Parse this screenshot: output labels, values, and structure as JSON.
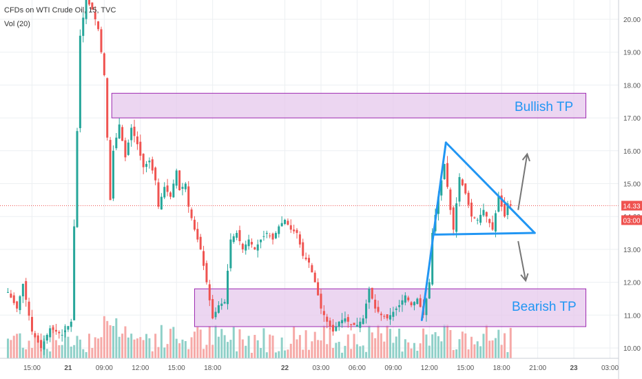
{
  "header": {
    "symbol_line": "CFDs on WTI Crude Oil, 15, TVC",
    "volume_line": "Vol (20)"
  },
  "price_tags": {
    "last_price": "14.33",
    "countdown": "03:00"
  },
  "annotations": {
    "bullish": "Bullish TP",
    "bearish": "Bearish TP"
  },
  "colors": {
    "up": "#26a69a",
    "down": "#ef5350",
    "vol_up": "#8fd0c8",
    "vol_down": "#f6a9a7",
    "zone_fill": "#e6c8ec",
    "zone_border": "#9c27b0",
    "pattern": "#2196f3",
    "arrow": "#757575",
    "last_price": "#ef5350"
  },
  "chart_data": {
    "type": "candlestick",
    "y_ticks": [
      "10.00",
      "11.00",
      "12.00",
      "13.00",
      "14.00",
      "15.00",
      "16.00",
      "17.00",
      "18.00",
      "19.00",
      "20.00"
    ],
    "ylim": [
      9.75,
      20.65
    ],
    "x_ticks": [
      {
        "label": "15:00",
        "bar": 8
      },
      {
        "label": "21",
        "bar": 20,
        "bold": true
      },
      {
        "label": "09:00",
        "bar": 32
      },
      {
        "label": "12:00",
        "bar": 44
      },
      {
        "label": "15:00",
        "bar": 56
      },
      {
        "label": "18:00",
        "bar": 68
      },
      {
        "label": "22",
        "bar": 92,
        "bold": true
      },
      {
        "label": "03:00",
        "bar": 104
      },
      {
        "label": "06:00",
        "bar": 116
      },
      {
        "label": "09:00",
        "bar": 128
      },
      {
        "label": "12:00",
        "bar": 140
      },
      {
        "label": "15:00",
        "bar": 152
      },
      {
        "label": "18:00",
        "bar": 164
      },
      {
        "label": "21:00",
        "bar": 176
      },
      {
        "label": "23",
        "bar": 188,
        "bold": true
      },
      {
        "label": "03:00",
        "bar": 200
      }
    ],
    "last_price": 14.33,
    "zones": [
      {
        "name": "bullish",
        "from_bar": 34.5,
        "to_bar": 192,
        "low": 17.0,
        "high": 17.75
      },
      {
        "name": "bearish",
        "from_bar": 62,
        "to_bar": 192,
        "low": 10.65,
        "high": 11.8
      }
    ],
    "pattern": {
      "flagpole": [
        [
          137.5,
          10.85
        ],
        [
          145.5,
          16.25
        ]
      ],
      "upper": [
        [
          145.5,
          16.25
        ],
        [
          175,
          13.5
        ]
      ],
      "lower": [
        [
          141.5,
          13.45
        ],
        [
          175,
          13.5
        ]
      ]
    },
    "arrows": [
      {
        "from": [
          169.5,
          14.2
        ],
        "to": [
          172.5,
          15.9
        ]
      },
      {
        "from": [
          169.5,
          13.25
        ],
        "to": [
          172,
          12.05
        ]
      }
    ],
    "pivots": [
      [
        0,
        11.7
      ],
      [
        3,
        11.2
      ],
      [
        5,
        11.95
      ],
      [
        8,
        10.5
      ],
      [
        11,
        10.0
      ],
      [
        14,
        10.6
      ],
      [
        18,
        10.4
      ],
      [
        21,
        10.8
      ],
      [
        24,
        19.5
      ],
      [
        26,
        20.6
      ],
      [
        28,
        20.3
      ],
      [
        30,
        19.7
      ],
      [
        32,
        18.3
      ],
      [
        34,
        14.5
      ],
      [
        35,
        16.0
      ],
      [
        37,
        16.8
      ],
      [
        39,
        15.8
      ],
      [
        41,
        16.7
      ],
      [
        43,
        16.2
      ],
      [
        45,
        15.5
      ],
      [
        47,
        15.7
      ],
      [
        49,
        15.1
      ],
      [
        50,
        14.3
      ],
      [
        52,
        14.9
      ],
      [
        54,
        14.6
      ],
      [
        56,
        15.4
      ],
      [
        57,
        14.8
      ],
      [
        59,
        15.0
      ],
      [
        60,
        14.3
      ],
      [
        62,
        13.6
      ],
      [
        64,
        13.0
      ],
      [
        66,
        12.0
      ],
      [
        68,
        10.9
      ],
      [
        70,
        11.3
      ],
      [
        72,
        11.4
      ],
      [
        74,
        13.3
      ],
      [
        76,
        13.5
      ],
      [
        78,
        13.0
      ],
      [
        80,
        13.3
      ],
      [
        82,
        13.0
      ],
      [
        84,
        13.3
      ],
      [
        86,
        13.5
      ],
      [
        88,
        13.3
      ],
      [
        90,
        13.7
      ],
      [
        92,
        13.9
      ],
      [
        94,
        13.6
      ],
      [
        96,
        13.5
      ],
      [
        98,
        12.8
      ],
      [
        100,
        12.6
      ],
      [
        102,
        12.0
      ],
      [
        104,
        11.2
      ],
      [
        106,
        10.8
      ],
      [
        108,
        10.5
      ],
      [
        110,
        10.8
      ],
      [
        112,
        10.9
      ],
      [
        114,
        10.7
      ],
      [
        116,
        10.7
      ],
      [
        118,
        10.9
      ],
      [
        120,
        11.8
      ],
      [
        122,
        11.2
      ],
      [
        124,
        11.0
      ],
      [
        126,
        10.9
      ],
      [
        128,
        11.1
      ],
      [
        130,
        11.3
      ],
      [
        132,
        11.6
      ],
      [
        134,
        11.3
      ],
      [
        136,
        11.5
      ],
      [
        138,
        11.0
      ],
      [
        140,
        12.0
      ],
      [
        141,
        13.5
      ],
      [
        143,
        14.6
      ],
      [
        145,
        15.6
      ],
      [
        147,
        14.2
      ],
      [
        148,
        13.6
      ],
      [
        150,
        15.2
      ],
      [
        152,
        14.7
      ],
      [
        154,
        14.0
      ],
      [
        156,
        13.9
      ],
      [
        158,
        14.2
      ],
      [
        160,
        13.8
      ],
      [
        161,
        13.6
      ],
      [
        163,
        14.6
      ],
      [
        165,
        14.0
      ],
      [
        166,
        14.4
      ],
      [
        167,
        14.33
      ]
    ]
  }
}
